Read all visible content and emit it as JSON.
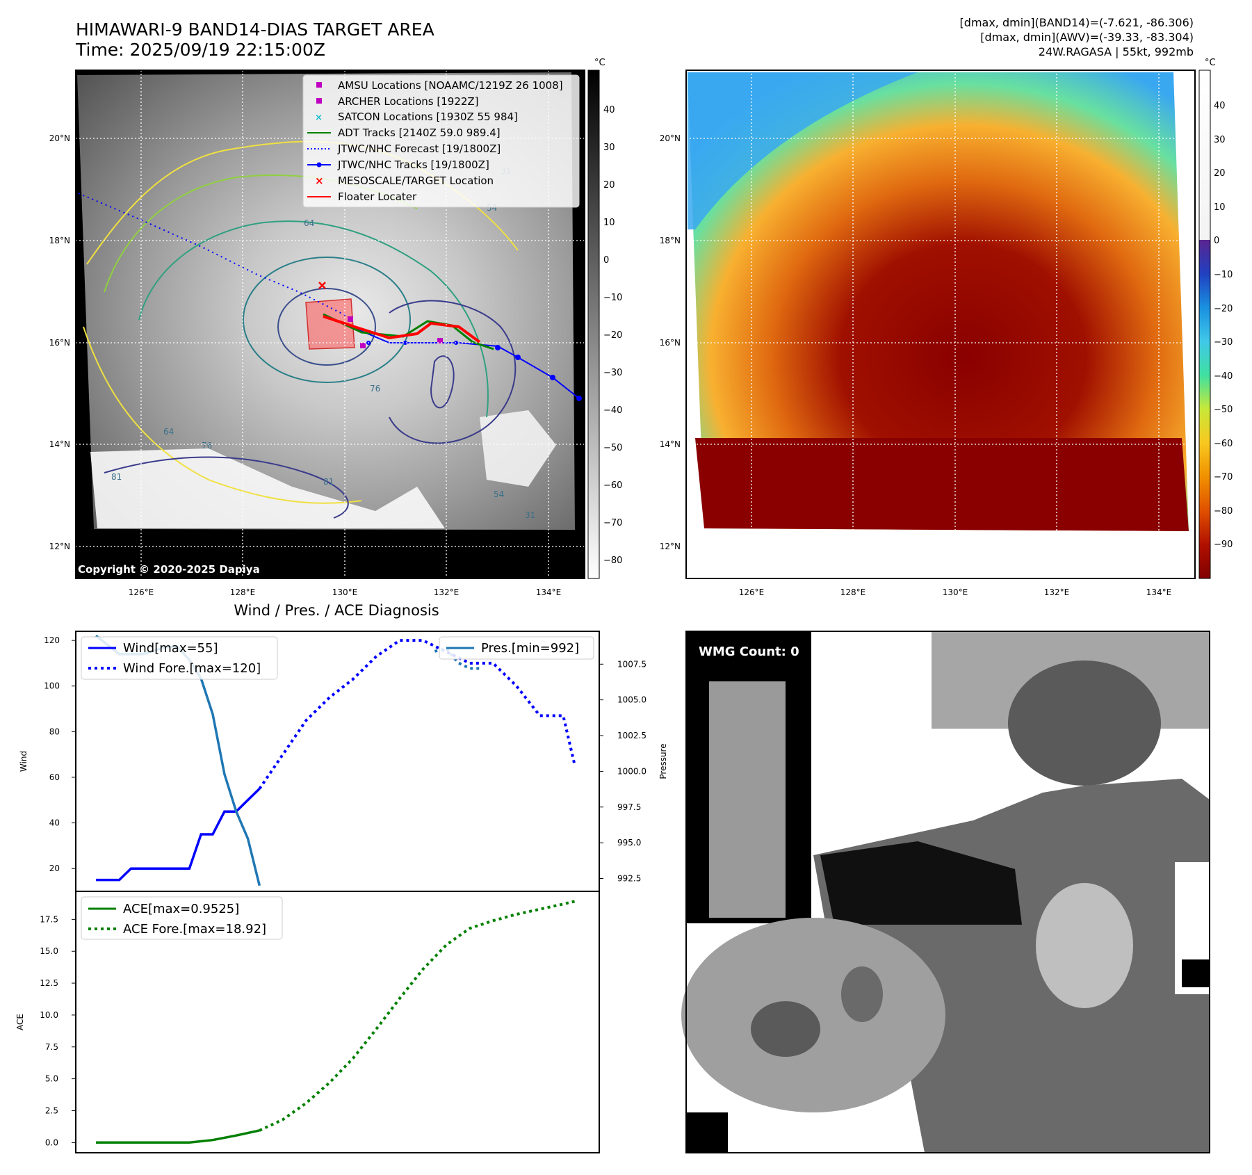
{
  "figure": {
    "title_line1": "HIMAWARI-9 BAND14-DIAS TARGET AREA",
    "title_line2": "Time: 2025/09/19 22:15:00Z",
    "info_line1": "[dmax, dmin](BAND14)=(-7.621, -86.306)",
    "info_line2": "[dmax, dmin](AWV)=(-39.33, -83.304)",
    "info_line3": "24W.RAGASA | 55kt, 992mb",
    "copyright": "Copyright © 2020-2025 Dapiya",
    "wmg_label": "WMG Count: 0",
    "diag_title": "Wind / Pres. / ACE Diagnosis"
  },
  "map": {
    "lat_labels": [
      "20°N",
      "18°N",
      "16°N",
      "14°N",
      "12°N"
    ],
    "lon_labels": [
      "126°E",
      "128°E",
      "130°E",
      "132°E",
      "134°E"
    ],
    "colorbar_unit": "°C",
    "colorbar_gray_ticks": [
      "40",
      "30",
      "20",
      "10",
      "0",
      "−10",
      "−20",
      "−30",
      "−40",
      "−50",
      "−60",
      "−70",
      "−80"
    ],
    "colorbar_color_ticks": [
      "40",
      "30",
      "20",
      "10",
      "0",
      "−10",
      "−20",
      "−30",
      "−40",
      "−50",
      "−60",
      "−70",
      "−80",
      "−90"
    ],
    "contour_labels": [
      "64",
      "54",
      "76",
      "81",
      "31",
      "54",
      "81",
      "64",
      "76",
      "31"
    ],
    "legend": [
      {
        "label": "AMSU Locations [NOAAMC/1219Z 26 1008]",
        "color": "#c000c0",
        "marker": "square"
      },
      {
        "label": "ARCHER Locations [1922Z]",
        "color": "#c000c0",
        "marker": "square"
      },
      {
        "label": "SATCON Locations [1930Z 55 984]",
        "color": "#17becf",
        "marker": "x"
      },
      {
        "label": "ADT Tracks [2140Z 59.0 989.4]",
        "color": "#008000",
        "marker": "line"
      },
      {
        "label": "JTWC/NHC Forecast [19/1800Z]",
        "color": "#0000ff",
        "marker": "dotted"
      },
      {
        "label": "JTWC/NHC Tracks [19/1800Z]",
        "color": "#0000ff",
        "marker": "line-dot"
      },
      {
        "label": "MESOSCALE/TARGET Location",
        "color": "#ff0000",
        "marker": "x"
      },
      {
        "label": "Floater Locater",
        "color": "#ff0000",
        "marker": "line"
      }
    ]
  },
  "chart_data": [
    {
      "type": "line",
      "title": "Wind / Pres. / ACE Diagnosis",
      "ylabel": "Wind",
      "y2label": "Pressure",
      "ylim": [
        10,
        124
      ],
      "y2lim": [
        991.6,
        1009.8
      ],
      "yticks": [
        20,
        40,
        60,
        80,
        100,
        120
      ],
      "y2ticks": [
        "992.5",
        "995.0",
        "997.5",
        "1000.0",
        "1002.5",
        "1005.0",
        "1007.5"
      ],
      "x": [
        0,
        1,
        2,
        3,
        4,
        5,
        6,
        7,
        8,
        9,
        10,
        11,
        12,
        13,
        14,
        15,
        16,
        17,
        18,
        19,
        20,
        21,
        22,
        23,
        24,
        25,
        26,
        27,
        28,
        29,
        30,
        31,
        32,
        33,
        34,
        35,
        36,
        37,
        38,
        39,
        40,
        41
      ],
      "series": [
        {
          "name": "Wind[max=55]",
          "color": "#0000ff",
          "style": "solid",
          "x": [
            0,
            2,
            3,
            6,
            8,
            9,
            10,
            11,
            12,
            13,
            14
          ],
          "values": [
            15,
            15,
            20,
            20,
            20,
            35,
            35,
            45,
            45,
            50,
            55
          ]
        },
        {
          "name": "Wind Fore.[max=120]",
          "color": "#0000ff",
          "style": "dotted",
          "x": [
            14,
            16,
            18,
            20,
            22,
            24,
            26,
            28,
            30,
            32,
            34,
            36,
            38,
            40,
            41
          ],
          "values": [
            55,
            70,
            85,
            95,
            103,
            113,
            120,
            120,
            115,
            110,
            110,
            100,
            87,
            87,
            65
          ]
        },
        {
          "name": "Pres.[min=992]",
          "color": "#1f77b4",
          "style": "solid",
          "axis": "right",
          "x": [
            0,
            2,
            4,
            6,
            7,
            8,
            9,
            10,
            11,
            12,
            13,
            14
          ],
          "values": [
            1009.5,
            1008.2,
            1008.2,
            1008.7,
            1008.7,
            1007.8,
            1006.5,
            1004.0,
            999.8,
            997.2,
            995.3,
            992.0
          ]
        },
        {
          "name": "Pres.[min=992]",
          "color": "#1f77b4",
          "style": "dotted",
          "axis": "right",
          "legend": false,
          "x": [
            29,
            30,
            31,
            32,
            33
          ],
          "values": [
            1008.4,
            1008.6,
            1007.6,
            1007.2,
            1007.2
          ]
        }
      ]
    },
    {
      "type": "line",
      "ylabel": "ACE",
      "ylim": [
        -0.8,
        19.7
      ],
      "yticks": [
        "0.0",
        "2.5",
        "5.0",
        "7.5",
        "10.0",
        "12.5",
        "15.0",
        "17.5"
      ],
      "series": [
        {
          "name": "ACE[max=0.9525]",
          "color": "#008000",
          "style": "solid",
          "x": [
            0,
            6,
            8,
            10,
            12,
            14
          ],
          "values": [
            0,
            0,
            0,
            0.2,
            0.55,
            0.95
          ]
        },
        {
          "name": "ACE Fore.[max=18.92]",
          "color": "#008000",
          "style": "dotted",
          "x": [
            14,
            16,
            18,
            20,
            22,
            24,
            26,
            28,
            30,
            32,
            34,
            36,
            38,
            40,
            41
          ],
          "values": [
            0.95,
            1.8,
            3.1,
            4.7,
            6.6,
            8.9,
            11.3,
            13.6,
            15.5,
            16.8,
            17.4,
            17.9,
            18.3,
            18.7,
            18.92
          ]
        }
      ]
    }
  ]
}
